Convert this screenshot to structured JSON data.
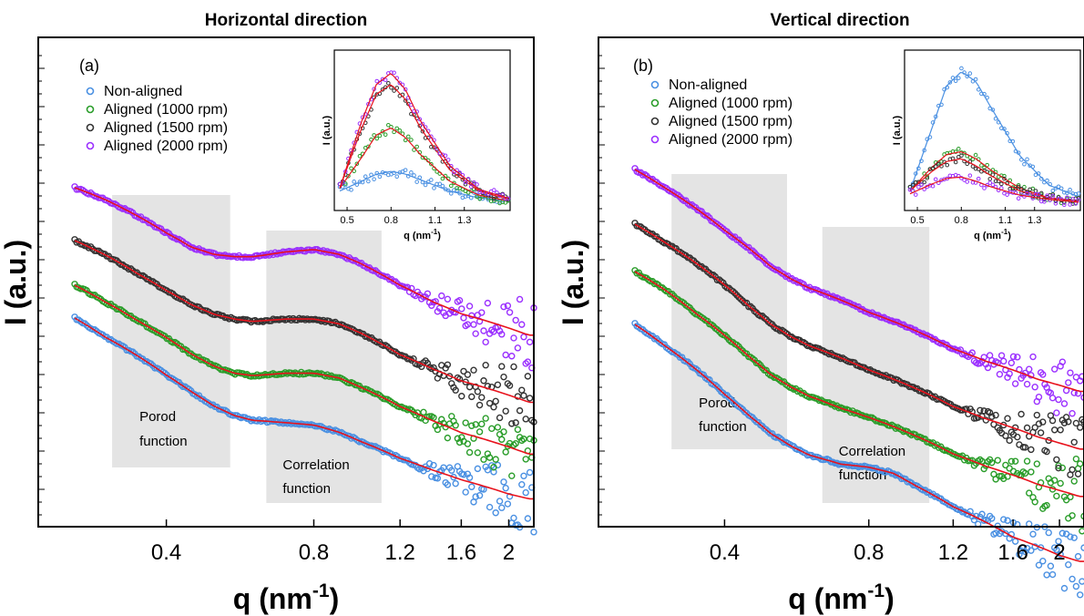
{
  "chart_data": [
    {
      "panel": "(a)",
      "title": "Horizontal direction",
      "type": "scatter",
      "x_scale": "log",
      "xlabel": "q (nm-1)",
      "ylabel": "I (a.u.)",
      "x_ticks": [
        "0.4",
        "0.8",
        "1.2",
        "1.6",
        "2"
      ],
      "xlim": [
        0.26,
        2.25
      ],
      "y_scale": "log, vertically offset curves, no tick labels",
      "legend": [
        "Non-aligned",
        "Aligned (1000 rpm)",
        "Aligned (1500 rpm)",
        "Aligned (2000 rpm)"
      ],
      "legend_position": "top-left",
      "regions": [
        {
          "label": [
            "Porod",
            "function"
          ],
          "x_range": [
            0.31,
            0.54
          ]
        },
        {
          "label": [
            "Correlation",
            "function"
          ],
          "x_range": [
            0.64,
            1.1
          ]
        }
      ],
      "series": [
        {
          "name": "Non-aligned",
          "color": "#4a90e2",
          "x": [
            0.26,
            0.3,
            0.35,
            0.4,
            0.45,
            0.5,
            0.55,
            0.6,
            0.7,
            0.8,
            0.9,
            1.0,
            1.2,
            1.4,
            1.6,
            1.8,
            2.0,
            2.2
          ],
          "y": [
            1.0,
            0.92,
            0.84,
            0.76,
            0.69,
            0.63,
            0.59,
            0.57,
            0.56,
            0.55,
            0.52,
            0.48,
            0.41,
            0.36,
            0.32,
            0.29,
            0.26,
            0.24
          ]
        },
        {
          "name": "Aligned (1000 rpm)",
          "color": "#2a9d2a",
          "x": [
            0.26,
            0.3,
            0.35,
            0.4,
            0.45,
            0.5,
            0.55,
            0.6,
            0.7,
            0.8,
            0.9,
            1.0,
            1.2,
            1.4,
            1.6,
            1.8,
            2.0,
            2.2
          ],
          "y": [
            1.0,
            0.93,
            0.85,
            0.78,
            0.71,
            0.66,
            0.63,
            0.62,
            0.63,
            0.63,
            0.61,
            0.57,
            0.49,
            0.43,
            0.38,
            0.35,
            0.32,
            0.29
          ]
        },
        {
          "name": "Aligned (1500 rpm)",
          "color": "#333333",
          "x": [
            0.26,
            0.3,
            0.35,
            0.4,
            0.45,
            0.5,
            0.55,
            0.6,
            0.7,
            0.8,
            0.9,
            1.0,
            1.2,
            1.4,
            1.6,
            1.8,
            2.0,
            2.2
          ],
          "y": [
            1.0,
            0.94,
            0.86,
            0.79,
            0.73,
            0.69,
            0.67,
            0.66,
            0.67,
            0.67,
            0.65,
            0.61,
            0.52,
            0.46,
            0.41,
            0.38,
            0.35,
            0.32
          ]
        },
        {
          "name": "Aligned (2000 rpm)",
          "color": "#9b30ff",
          "x": [
            0.26,
            0.3,
            0.35,
            0.4,
            0.45,
            0.5,
            0.55,
            0.6,
            0.7,
            0.8,
            0.9,
            1.0,
            1.2,
            1.4,
            1.6,
            1.8,
            2.0,
            2.2
          ],
          "y": [
            1.0,
            0.95,
            0.88,
            0.81,
            0.75,
            0.72,
            0.71,
            0.71,
            0.73,
            0.74,
            0.72,
            0.68,
            0.59,
            0.52,
            0.47,
            0.44,
            0.41,
            0.38
          ]
        }
      ],
      "fit": {
        "color": "#e8121c"
      },
      "inset": {
        "xlabel": "q (nm-1)",
        "ylabel": "I (a.u.)",
        "x_ticks": [
          "0.5",
          "0.8",
          "1.1",
          "1.3"
        ],
        "xlim": [
          0.45,
          1.6
        ],
        "series": [
          {
            "name": "Non-aligned",
            "color": "#4a90e2",
            "x": [
              0.45,
              0.6,
              0.7,
              0.8,
              0.9,
              1.0,
              1.2,
              1.4,
              1.6
            ],
            "y": [
              0.1,
              0.17,
              0.22,
              0.24,
              0.22,
              0.18,
              0.1,
              0.05,
              0.03
            ]
          },
          {
            "name": "Aligned (1000 rpm)",
            "color": "#2a9d2a",
            "x": [
              0.45,
              0.6,
              0.7,
              0.8,
              0.9,
              1.0,
              1.2,
              1.4,
              1.6
            ],
            "y": [
              0.12,
              0.34,
              0.5,
              0.55,
              0.48,
              0.36,
              0.17,
              0.07,
              0.03
            ]
          },
          {
            "name": "Aligned (1500 rpm)",
            "color": "#333333",
            "x": [
              0.45,
              0.6,
              0.7,
              0.8,
              0.9,
              1.0,
              1.2,
              1.4,
              1.6
            ],
            "y": [
              0.12,
              0.55,
              0.79,
              0.86,
              0.75,
              0.55,
              0.25,
              0.1,
              0.04
            ]
          },
          {
            "name": "Aligned (2000 rpm)",
            "color": "#9b30ff",
            "x": [
              0.45,
              0.6,
              0.7,
              0.8,
              0.9,
              1.0,
              1.2,
              1.4,
              1.6
            ],
            "y": [
              0.12,
              0.6,
              0.86,
              0.94,
              0.82,
              0.6,
              0.28,
              0.11,
              0.05
            ]
          }
        ]
      }
    },
    {
      "panel": "(b)",
      "title": "Vertical direction",
      "type": "scatter",
      "x_scale": "log",
      "xlabel": "q (nm-1)",
      "ylabel": "I (a.u.)",
      "x_ticks": [
        "0.4",
        "0.8",
        "1.2",
        "1.6",
        "2"
      ],
      "xlim": [
        0.26,
        2.25
      ],
      "y_scale": "log, vertically offset curves, no tick labels",
      "legend": [
        "Non-aligned",
        "Aligned (1000 rpm)",
        "Aligned (1500 rpm)",
        "Aligned (2000 rpm)"
      ],
      "legend_position": "top-left",
      "regions": [
        {
          "label": [
            "Porod",
            "function"
          ],
          "x_range": [
            0.31,
            0.54
          ]
        },
        {
          "label": [
            "Correlation",
            "function"
          ],
          "x_range": [
            0.64,
            1.07
          ]
        }
      ],
      "series": [
        {
          "name": "Non-aligned",
          "color": "#4a90e2",
          "x": [
            0.26,
            0.3,
            0.35,
            0.4,
            0.45,
            0.5,
            0.55,
            0.6,
            0.7,
            0.8,
            0.9,
            1.0,
            1.2,
            1.4,
            1.6,
            1.8,
            2.0,
            2.2
          ],
          "y": [
            1.0,
            0.93,
            0.85,
            0.77,
            0.7,
            0.64,
            0.6,
            0.57,
            0.54,
            0.53,
            0.51,
            0.47,
            0.4,
            0.35,
            0.3,
            0.27,
            0.24,
            0.22
          ]
        },
        {
          "name": "Aligned (1000 rpm)",
          "color": "#2a9d2a",
          "x": [
            0.26,
            0.3,
            0.35,
            0.4,
            0.45,
            0.5,
            0.55,
            0.6,
            0.7,
            0.8,
            0.9,
            1.0,
            1.2,
            1.4,
            1.6,
            1.8,
            2.0,
            2.2
          ],
          "y": [
            1.0,
            0.94,
            0.86,
            0.79,
            0.72,
            0.66,
            0.62,
            0.59,
            0.55,
            0.52,
            0.49,
            0.46,
            0.4,
            0.36,
            0.33,
            0.3,
            0.28,
            0.26
          ]
        },
        {
          "name": "Aligned (1500 rpm)",
          "color": "#333333",
          "x": [
            0.26,
            0.3,
            0.35,
            0.4,
            0.45,
            0.5,
            0.55,
            0.6,
            0.7,
            0.8,
            0.9,
            1.0,
            1.2,
            1.4,
            1.6,
            1.8,
            2.0,
            2.2
          ],
          "y": [
            1.0,
            0.94,
            0.87,
            0.8,
            0.73,
            0.67,
            0.63,
            0.6,
            0.56,
            0.52,
            0.49,
            0.46,
            0.4,
            0.36,
            0.33,
            0.3,
            0.28,
            0.26
          ]
        },
        {
          "name": "Aligned (2000 rpm)",
          "color": "#9b30ff",
          "x": [
            0.26,
            0.3,
            0.35,
            0.4,
            0.45,
            0.5,
            0.55,
            0.6,
            0.7,
            0.8,
            0.9,
            1.0,
            1.2,
            1.4,
            1.6,
            1.8,
            2.0,
            2.2
          ],
          "y": [
            1.0,
            0.94,
            0.87,
            0.8,
            0.74,
            0.68,
            0.64,
            0.61,
            0.57,
            0.53,
            0.5,
            0.47,
            0.41,
            0.37,
            0.34,
            0.31,
            0.29,
            0.27
          ]
        }
      ],
      "fit": {
        "color": "#e8121c"
      },
      "inset": {
        "xlabel": "q (nm-1)",
        "ylabel": "I (a.u.)",
        "x_ticks": [
          "0.5",
          "0.8",
          "1.1",
          "1.3"
        ],
        "xlim": [
          0.45,
          1.6
        ],
        "series": [
          {
            "name": "Non-aligned",
            "color": "#4a90e2",
            "x": [
              0.45,
              0.6,
              0.7,
              0.8,
              0.9,
              1.0,
              1.2,
              1.4,
              1.6
            ],
            "y": [
              0.1,
              0.55,
              0.85,
              0.95,
              0.88,
              0.7,
              0.35,
              0.14,
              0.06
            ]
          },
          {
            "name": "Aligned (1000 rpm)",
            "color": "#2a9d2a",
            "x": [
              0.45,
              0.6,
              0.7,
              0.8,
              0.9,
              1.0,
              1.2,
              1.4,
              1.6
            ],
            "y": [
              0.1,
              0.27,
              0.36,
              0.38,
              0.33,
              0.25,
              0.12,
              0.05,
              0.03
            ]
          },
          {
            "name": "Aligned (1500 rpm)",
            "color": "#333333",
            "x": [
              0.45,
              0.6,
              0.7,
              0.8,
              0.9,
              1.0,
              1.2,
              1.4,
              1.6
            ],
            "y": [
              0.1,
              0.24,
              0.31,
              0.33,
              0.28,
              0.21,
              0.1,
              0.05,
              0.03
            ]
          },
          {
            "name": "Aligned (2000 rpm)",
            "color": "#9b30ff",
            "x": [
              0.45,
              0.6,
              0.7,
              0.8,
              0.9,
              1.0,
              1.2,
              1.4,
              1.6
            ],
            "y": [
              0.08,
              0.15,
              0.19,
              0.2,
              0.17,
              0.13,
              0.07,
              0.04,
              0.02
            ]
          }
        ]
      }
    }
  ]
}
